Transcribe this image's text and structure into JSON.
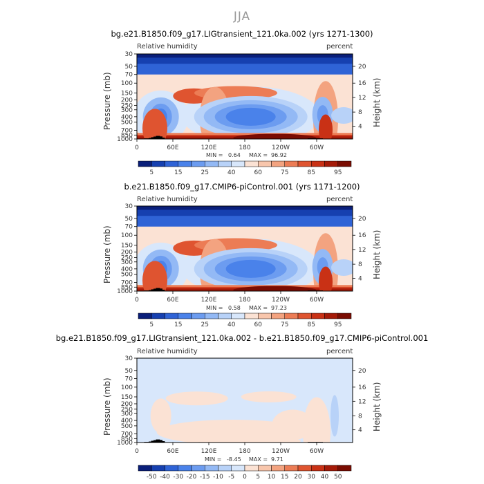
{
  "figure": {
    "suptitle": "JJA"
  },
  "chart_data": [
    {
      "type": "heatmap",
      "title": "bg.e21.B1850.f09_g17.LIGtransient_121.0ka.002 (yrs 1271-1300)",
      "left_string": "Relative humidity",
      "right_string": "percent",
      "ylabel": "Pressure (mb)",
      "ylabel_right": "Height (km)",
      "yticks": [
        "30",
        "50",
        "70",
        "100",
        "150",
        "200",
        "250",
        "300",
        "400",
        "500",
        "700",
        "850",
        "1000"
      ],
      "yticks_right": [
        "20",
        "16",
        "12",
        "8",
        "4"
      ],
      "xticks": [
        "0",
        "60E",
        "120E",
        "180",
        "120W",
        "60W"
      ],
      "ylim": [
        1000,
        30
      ],
      "xlim": [
        0,
        360
      ],
      "min_label": "MIN =",
      "min_value": "0.64",
      "max_label": "MAX =",
      "max_value": "96.92",
      "colorbar_ticks": [
        "5",
        "15",
        "25",
        "40",
        "60",
        "75",
        "85",
        "95"
      ],
      "palette": [
        "#0a1f7a",
        "#1640b0",
        "#2f63d6",
        "#4a82ea",
        "#6c9cf0",
        "#93b9f5",
        "#b8d2f8",
        "#d8e7fb",
        "#fbe2d4",
        "#f8c6ac",
        "#f3a380",
        "#ec7c55",
        "#df5430",
        "#c93115",
        "#a51a08",
        "#7a0c02"
      ]
    },
    {
      "type": "heatmap",
      "title": "b.e21.B1850.f09_g17.CMIP6-piControl.001 (yrs 1171-1200)",
      "left_string": "Relative humidity",
      "right_string": "percent",
      "ylabel": "Pressure (mb)",
      "ylabel_right": "Height (km)",
      "yticks": [
        "30",
        "50",
        "70",
        "100",
        "150",
        "200",
        "250",
        "300",
        "400",
        "500",
        "700",
        "850",
        "1000"
      ],
      "yticks_right": [
        "20",
        "16",
        "12",
        "8",
        "4"
      ],
      "xticks": [
        "0",
        "60E",
        "120E",
        "180",
        "120W",
        "60W"
      ],
      "ylim": [
        1000,
        30
      ],
      "xlim": [
        0,
        360
      ],
      "min_label": "MIN =",
      "min_value": "0.58",
      "max_label": "MAX =",
      "max_value": "97.23",
      "colorbar_ticks": [
        "5",
        "15",
        "25",
        "40",
        "60",
        "75",
        "85",
        "95"
      ],
      "palette": [
        "#0a1f7a",
        "#1640b0",
        "#2f63d6",
        "#4a82ea",
        "#6c9cf0",
        "#93b9f5",
        "#b8d2f8",
        "#d8e7fb",
        "#fbe2d4",
        "#f8c6ac",
        "#f3a380",
        "#ec7c55",
        "#df5430",
        "#c93115",
        "#a51a08",
        "#7a0c02"
      ]
    },
    {
      "type": "heatmap",
      "title": "bg.e21.B1850.f09_g17.LIGtransient_121.0ka.002 - b.e21.B1850.f09_g17.CMIP6-piControl.001",
      "left_string": "Relative humidity",
      "right_string": "percent",
      "ylabel": "Pressure (mb)",
      "ylabel_right": "Height (km)",
      "yticks": [
        "30",
        "50",
        "70",
        "100",
        "150",
        "200",
        "250",
        "300",
        "400",
        "500",
        "700",
        "850",
        "1000"
      ],
      "yticks_right": [
        "20",
        "16",
        "12",
        "8",
        "4"
      ],
      "xticks": [
        "0",
        "60E",
        "120E",
        "180",
        "120W",
        "60W"
      ],
      "ylim": [
        1000,
        30
      ],
      "xlim": [
        0,
        360
      ],
      "min_label": "MIN =",
      "min_value": "-8.45",
      "max_label": "MAX =",
      "max_value": "9.71",
      "colorbar_ticks": [
        "-50",
        "-40",
        "-30",
        "-20",
        "-15",
        "-10",
        "-5",
        "0",
        "5",
        "10",
        "15",
        "20",
        "30",
        "40",
        "50"
      ],
      "palette": [
        "#0a1f7a",
        "#1640b0",
        "#2f63d6",
        "#4a82ea",
        "#6c9cf0",
        "#93b9f5",
        "#b8d2f8",
        "#d8e7fb",
        "#fbe2d4",
        "#f8c6ac",
        "#f3a380",
        "#ec7c55",
        "#df5430",
        "#c93115",
        "#a51a08",
        "#7a0c02"
      ]
    }
  ]
}
